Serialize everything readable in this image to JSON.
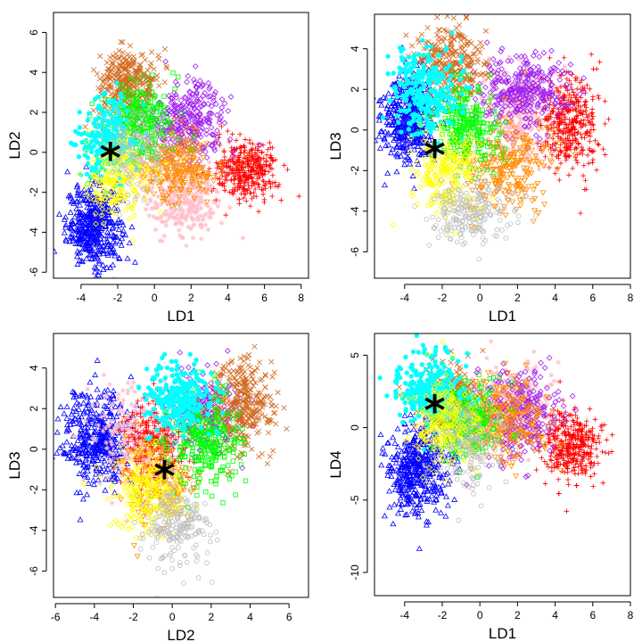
{
  "chart_data": [
    {
      "type": "scatter",
      "title": "",
      "xlabel": "LD1",
      "ylabel": "LD2",
      "xticks": [
        -4,
        -2,
        0,
        2,
        4,
        6,
        8
      ],
      "yticks": [
        -6,
        -4,
        -2,
        0,
        2,
        4,
        6
      ],
      "xlim": [
        -5.5,
        8.4
      ],
      "ylim": [
        -6.3,
        7.0
      ],
      "marker": {
        "x": -2.4,
        "y": -0.35,
        "symbol": "*"
      },
      "clusters": [
        {
          "color": "#0000ff",
          "shape": "triangle",
          "cx": -3.3,
          "cy": -3.7,
          "sx": 0.75,
          "sy": 1.0,
          "n": 420
        },
        {
          "color": "#ffc0cb",
          "shape": "asterisk",
          "cx": 1.6,
          "cy": -2.2,
          "sx": 1.1,
          "sy": 1.0,
          "n": 320
        },
        {
          "color": "#ff0000",
          "shape": "plus",
          "cx": 5.0,
          "cy": -0.9,
          "sx": 0.85,
          "sy": 0.75,
          "n": 380
        },
        {
          "color": "#a020f0",
          "shape": "diamond",
          "cx": 1.8,
          "cy": 1.6,
          "sx": 1.1,
          "sy": 0.9,
          "n": 320
        },
        {
          "color": "#d2691e",
          "shape": "cross",
          "cx": -1.4,
          "cy": 3.4,
          "sx": 0.8,
          "sy": 0.9,
          "n": 340
        },
        {
          "color": "#ff8c00",
          "shape": "triangle-down",
          "cx": 1.2,
          "cy": -0.7,
          "sx": 1.0,
          "sy": 0.8,
          "n": 250
        },
        {
          "color": "#00ff00",
          "shape": "square",
          "cx": -0.8,
          "cy": 1.5,
          "sx": 0.9,
          "sy": 1.0,
          "n": 300
        },
        {
          "color": "#00ffff",
          "shape": "circle-filled",
          "cx": -2.6,
          "cy": 0.6,
          "sx": 0.8,
          "sy": 1.0,
          "n": 260
        },
        {
          "color": "#ffff00",
          "shape": "diamond",
          "cx": -2.0,
          "cy": -1.3,
          "sx": 0.9,
          "sy": 0.9,
          "n": 220
        },
        {
          "color": "#bebebe",
          "shape": "circle",
          "cx": -1.2,
          "cy": 0.4,
          "sx": 1.0,
          "sy": 1.0,
          "n": 150
        }
      ]
    },
    {
      "type": "scatter",
      "title": "",
      "xlabel": "LD1",
      "ylabel": "LD3",
      "xticks": [
        -4,
        -2,
        0,
        2,
        4,
        6,
        8
      ],
      "yticks": [
        -6,
        -4,
        -2,
        0,
        2,
        4
      ],
      "xlim": [
        -5.6,
        8.0
      ],
      "ylim": [
        -7.3,
        5.7
      ],
      "marker": {
        "x": -2.4,
        "y": -1.3,
        "symbol": "*"
      },
      "clusters": [
        {
          "color": "#0000ff",
          "shape": "triangle",
          "cx": -3.8,
          "cy": 0.6,
          "sx": 0.7,
          "sy": 1.1,
          "n": 420
        },
        {
          "color": "#ffc0cb",
          "shape": "asterisk",
          "cx": 1.8,
          "cy": 0.6,
          "sx": 1.0,
          "sy": 1.2,
          "n": 300
        },
        {
          "color": "#ff0000",
          "shape": "plus",
          "cx": 4.8,
          "cy": 0.3,
          "sx": 0.8,
          "sy": 1.2,
          "n": 380
        },
        {
          "color": "#a020f0",
          "shape": "diamond",
          "cx": 2.2,
          "cy": 1.9,
          "sx": 1.2,
          "sy": 0.9,
          "n": 320
        },
        {
          "color": "#d2691e",
          "shape": "cross",
          "cx": -1.6,
          "cy": 3.3,
          "sx": 0.9,
          "sy": 0.9,
          "n": 300
        },
        {
          "color": "#ff8c00",
          "shape": "triangle-down",
          "cx": 1.5,
          "cy": -1.6,
          "sx": 1.2,
          "sy": 1.1,
          "n": 260
        },
        {
          "color": "#00ff00",
          "shape": "square",
          "cx": -0.9,
          "cy": 0.2,
          "sx": 0.9,
          "sy": 1.0,
          "n": 280
        },
        {
          "color": "#00ffff",
          "shape": "circle-filled",
          "cx": -2.9,
          "cy": 1.9,
          "sx": 0.9,
          "sy": 1.1,
          "n": 260
        },
        {
          "color": "#ffff00",
          "shape": "diamond",
          "cx": -1.7,
          "cy": -2.2,
          "sx": 0.9,
          "sy": 1.0,
          "n": 220
        },
        {
          "color": "#bebebe",
          "shape": "circle",
          "cx": -0.4,
          "cy": -4.0,
          "sx": 1.0,
          "sy": 0.8,
          "n": 220
        }
      ]
    },
    {
      "type": "scatter",
      "title": "",
      "xlabel": "LD2",
      "ylabel": "LD3",
      "xticks": [
        -6,
        -4,
        -2,
        0,
        2,
        4,
        6
      ],
      "yticks": [
        -6,
        -4,
        -2,
        0,
        2,
        4
      ],
      "xlim": [
        -6.1,
        7.0
      ],
      "ylim": [
        -7.3,
        5.7
      ],
      "marker": {
        "x": -0.4,
        "y": -1.4,
        "symbol": "*"
      },
      "clusters": [
        {
          "color": "#0000ff",
          "shape": "triangle",
          "cx": -3.8,
          "cy": 0.5,
          "sx": 0.9,
          "sy": 1.2,
          "n": 420
        },
        {
          "color": "#ffc0cb",
          "shape": "asterisk",
          "cx": -2.2,
          "cy": 0.6,
          "sx": 1.0,
          "sy": 1.2,
          "n": 240
        },
        {
          "color": "#ff0000",
          "shape": "plus",
          "cx": -0.8,
          "cy": 0.3,
          "sx": 0.8,
          "sy": 1.1,
          "n": 260
        },
        {
          "color": "#a020f0",
          "shape": "diamond",
          "cx": 1.6,
          "cy": 1.9,
          "sx": 0.9,
          "sy": 0.9,
          "n": 240
        },
        {
          "color": "#d2691e",
          "shape": "cross",
          "cx": 3.6,
          "cy": 2.1,
          "sx": 0.8,
          "sy": 1.2,
          "n": 340
        },
        {
          "color": "#ff8c00",
          "shape": "triangle-down",
          "cx": -0.7,
          "cy": -1.6,
          "sx": 0.9,
          "sy": 1.1,
          "n": 200
        },
        {
          "color": "#00ff00",
          "shape": "square",
          "cx": 1.8,
          "cy": 0.4,
          "sx": 0.9,
          "sy": 1.2,
          "n": 300
        },
        {
          "color": "#00ffff",
          "shape": "circle-filled",
          "cx": 0.3,
          "cy": 2.5,
          "sx": 0.9,
          "sy": 0.8,
          "n": 260
        },
        {
          "color": "#ffff00",
          "shape": "diamond",
          "cx": -1.2,
          "cy": -2.1,
          "sx": 0.9,
          "sy": 1.0,
          "n": 240
        },
        {
          "color": "#bebebe",
          "shape": "circle",
          "cx": 0.3,
          "cy": -3.8,
          "sx": 0.8,
          "sy": 1.0,
          "n": 220
        }
      ]
    },
    {
      "type": "scatter",
      "title": "",
      "xlabel": "LD1",
      "ylabel": "LD4",
      "xticks": [
        -4,
        -2,
        0,
        2,
        4,
        6,
        8
      ],
      "yticks": [
        -10,
        -5,
        0,
        5
      ],
      "xlim": [
        -5.6,
        8.0
      ],
      "ylim": [
        -11.6,
        6.5
      ],
      "marker": {
        "x": -2.4,
        "y": 1.1,
        "symbol": "*"
      },
      "clusters": [
        {
          "color": "#0000ff",
          "shape": "triangle",
          "cx": -3.3,
          "cy": -3.0,
          "sx": 0.8,
          "sy": 1.6,
          "n": 420
        },
        {
          "color": "#ffc0cb",
          "shape": "asterisk",
          "cx": 1.6,
          "cy": 1.5,
          "sx": 1.1,
          "sy": 1.4,
          "n": 300
        },
        {
          "color": "#ff0000",
          "shape": "plus",
          "cx": 4.8,
          "cy": -1.3,
          "sx": 0.8,
          "sy": 1.2,
          "n": 380
        },
        {
          "color": "#a020f0",
          "shape": "diamond",
          "cx": 2.2,
          "cy": 0.9,
          "sx": 1.1,
          "sy": 1.6,
          "n": 280
        },
        {
          "color": "#d2691e",
          "shape": "cross",
          "cx": -1.4,
          "cy": 1.9,
          "sx": 0.8,
          "sy": 1.3,
          "n": 240
        },
        {
          "color": "#ff8c00",
          "shape": "triangle-down",
          "cx": 1.4,
          "cy": 0.5,
          "sx": 1.0,
          "sy": 1.5,
          "n": 240
        },
        {
          "color": "#00ff00",
          "shape": "square",
          "cx": -0.8,
          "cy": 0.6,
          "sx": 0.9,
          "sy": 1.3,
          "n": 280
        },
        {
          "color": "#00ffff",
          "shape": "circle-filled",
          "cx": -2.6,
          "cy": 2.7,
          "sx": 0.9,
          "sy": 1.2,
          "n": 260
        },
        {
          "color": "#ffff00",
          "shape": "diamond",
          "cx": -1.8,
          "cy": 0.4,
          "sx": 0.9,
          "sy": 1.5,
          "n": 240
        },
        {
          "color": "#bebebe",
          "shape": "circle",
          "cx": -0.8,
          "cy": -1.4,
          "sx": 1.0,
          "sy": 1.5,
          "n": 160
        }
      ]
    }
  ]
}
